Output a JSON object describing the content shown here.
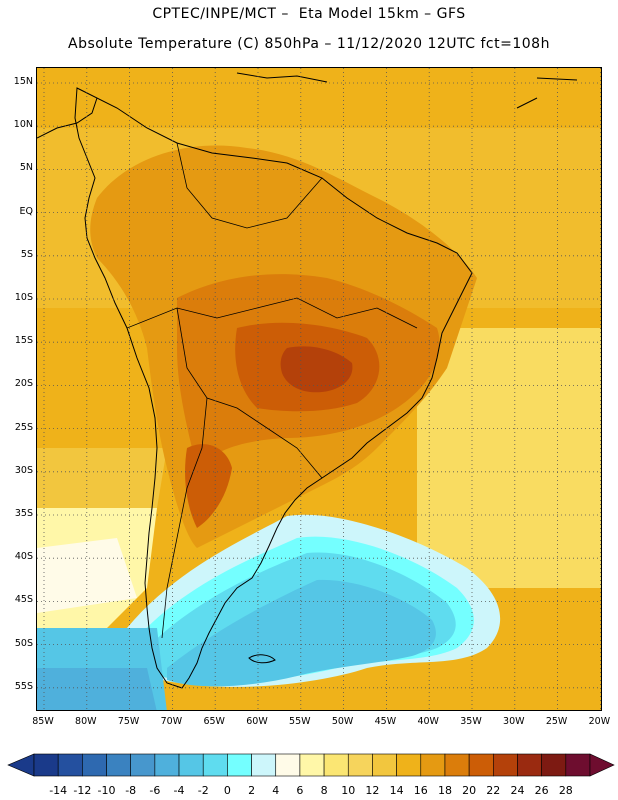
{
  "header": {
    "title_line1": "CPTEC/INPE/MCT –  Eta Model 15km – GFS",
    "title_line2": "Absolute Temperature (C) 850hPa – 11/12/2020 12UTC fct=108h"
  },
  "map": {
    "latitude_labels": [
      "15N",
      "10N",
      "5N",
      "EQ",
      "5S",
      "10S",
      "15S",
      "20S",
      "25S",
      "30S",
      "35S",
      "40S",
      "45S",
      "50S",
      "55S"
    ],
    "longitude_labels": [
      "85W",
      "80W",
      "75W",
      "70W",
      "65W",
      "60W",
      "55W",
      "50W",
      "45W",
      "40W",
      "35W",
      "30W",
      "25W",
      "20W"
    ]
  },
  "colorbar": {
    "units": "C",
    "tick_labels": [
      "-14",
      "-12",
      "-10",
      "-8",
      "-6",
      "-4",
      "-2",
      "0",
      "2",
      "4",
      "6",
      "8",
      "10",
      "12",
      "14",
      "16",
      "18",
      "20",
      "22",
      "24",
      "26",
      "28"
    ],
    "colors": [
      "#1a3a8a",
      "#24509f",
      "#2e69b0",
      "#3a82c0",
      "#4797cd",
      "#4fb0dc",
      "#55c6e6",
      "#5fdcef",
      "#74ffff",
      "#cdf6fb",
      "#fffbe8",
      "#fff7a8",
      "#fbe673",
      "#f6d45c",
      "#f2c63e",
      "#efb21a",
      "#e59a12",
      "#db7d0b",
      "#cc5d06",
      "#b4410a",
      "#9a2a10",
      "#7d1a12",
      "#6e0d2f"
    ]
  }
}
